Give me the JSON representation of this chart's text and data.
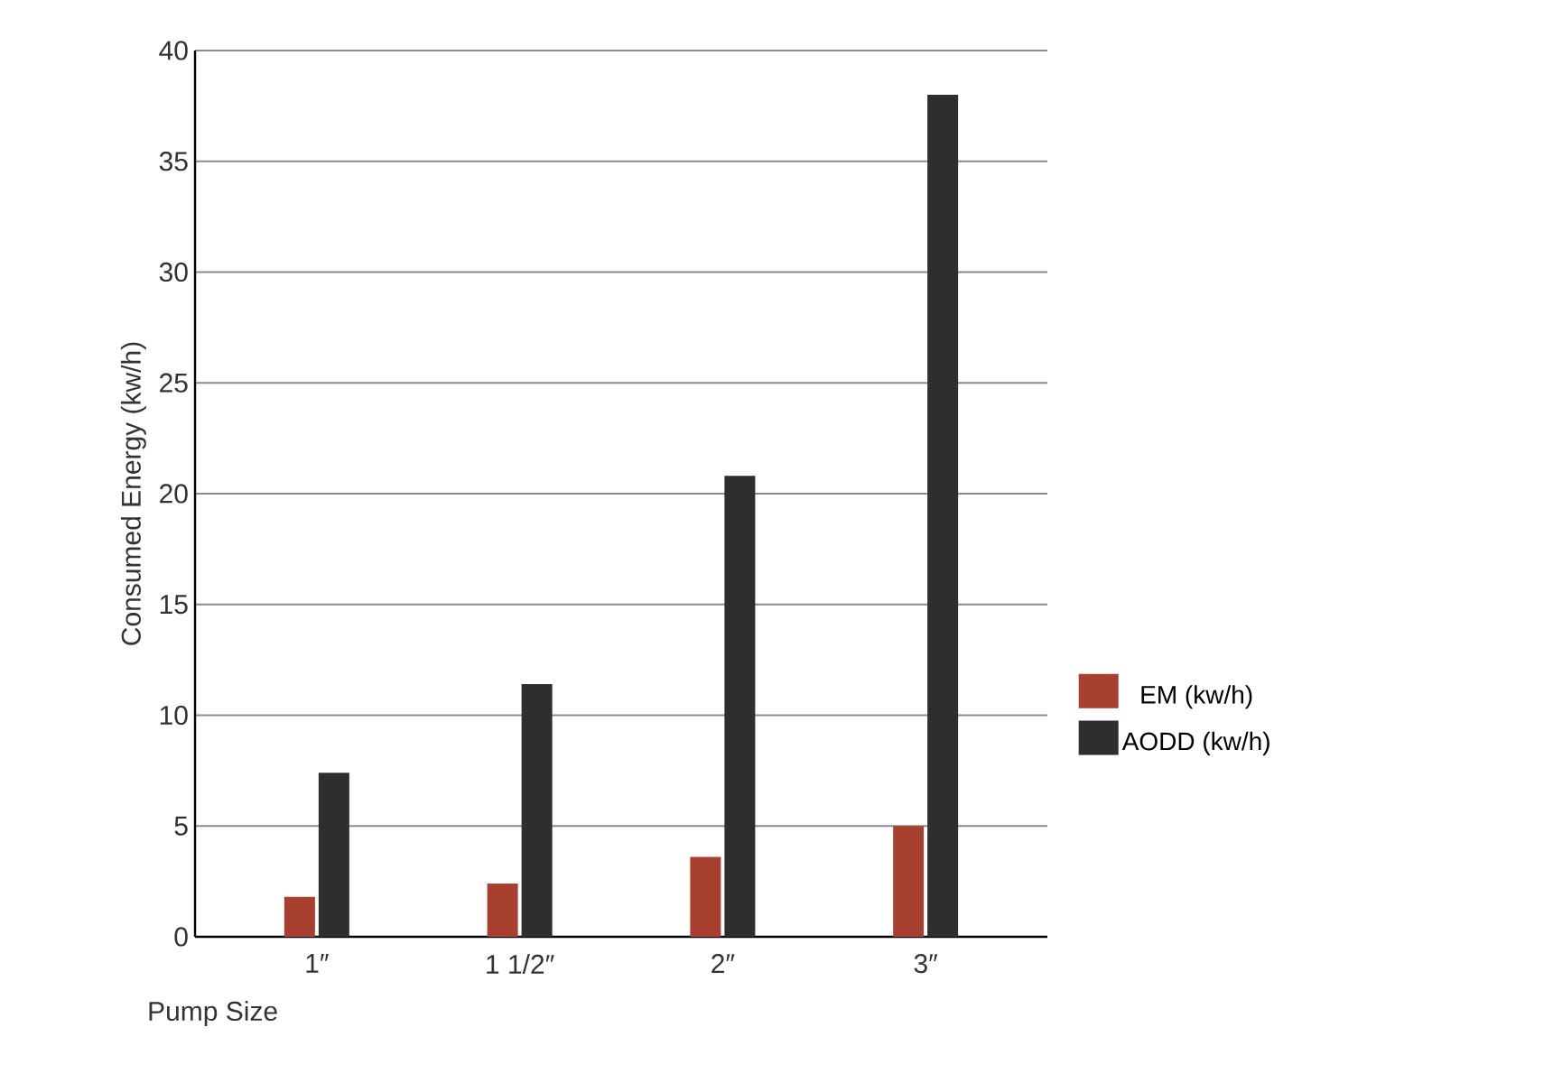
{
  "chart_data": {
    "type": "bar",
    "xlabel": "Pump Size",
    "ylabel": "Consumed Energy (kw/h)",
    "categories": [
      "1″",
      "1 1/2″",
      "2″",
      "3″"
    ],
    "series": [
      {
        "name": "EM (kw/h)",
        "color": "#a8402f",
        "values": [
          1.8,
          2.4,
          3.6,
          5.0
        ]
      },
      {
        "name": "AODD (kw/h)",
        "color": "#2e2e2e",
        "values": [
          7.4,
          11.4,
          20.8,
          38.0
        ]
      }
    ],
    "ylim": [
      0,
      40
    ],
    "yticks": [
      0,
      5,
      10,
      15,
      20,
      25,
      30,
      35,
      40
    ],
    "grid": "y",
    "legend": "right"
  }
}
